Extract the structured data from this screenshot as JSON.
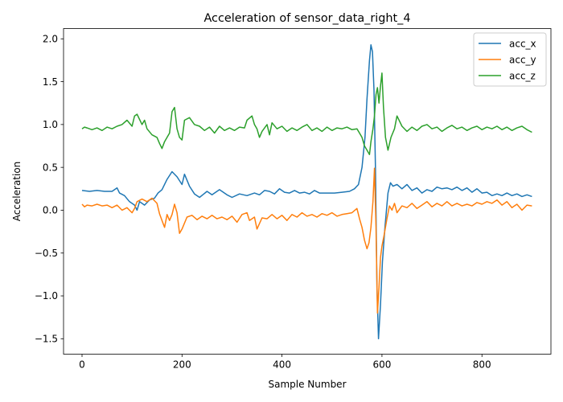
{
  "chart_data": {
    "type": "line",
    "title": "Acceleration of sensor_data_right_4",
    "xlabel": "Sample Number",
    "ylabel": "Acceleration",
    "xlim": [
      -37,
      938
    ],
    "ylim": [
      -1.68,
      2.12
    ],
    "xticks": [
      0,
      200,
      400,
      600,
      800
    ],
    "yticks": [
      -1.5,
      -1.0,
      -0.5,
      0.0,
      0.5,
      1.0,
      1.5,
      2.0
    ],
    "ytick_labels": [
      "−1.5",
      "−1.0",
      "−0.5",
      "0.0",
      "0.5",
      "1.0",
      "1.5",
      "2.0"
    ],
    "legend": "upper right",
    "grid": false,
    "series": [
      {
        "name": "acc_x",
        "color": "#1f77b4",
        "points": [
          [
            0,
            0.23
          ],
          [
            15,
            0.22
          ],
          [
            30,
            0.23
          ],
          [
            45,
            0.22
          ],
          [
            60,
            0.22
          ],
          [
            70,
            0.26
          ],
          [
            75,
            0.2
          ],
          [
            85,
            0.17
          ],
          [
            95,
            0.1
          ],
          [
            105,
            0.06
          ],
          [
            110,
            0.0
          ],
          [
            115,
            0.1
          ],
          [
            125,
            0.06
          ],
          [
            135,
            0.12
          ],
          [
            145,
            0.14
          ],
          [
            152,
            0.2
          ],
          [
            160,
            0.24
          ],
          [
            170,
            0.36
          ],
          [
            180,
            0.45
          ],
          [
            190,
            0.39
          ],
          [
            200,
            0.3
          ],
          [
            205,
            0.42
          ],
          [
            215,
            0.28
          ],
          [
            225,
            0.19
          ],
          [
            235,
            0.15
          ],
          [
            250,
            0.22
          ],
          [
            260,
            0.18
          ],
          [
            275,
            0.24
          ],
          [
            290,
            0.18
          ],
          [
            300,
            0.15
          ],
          [
            315,
            0.19
          ],
          [
            330,
            0.17
          ],
          [
            345,
            0.2
          ],
          [
            355,
            0.18
          ],
          [
            365,
            0.23
          ],
          [
            375,
            0.22
          ],
          [
            385,
            0.19
          ],
          [
            395,
            0.25
          ],
          [
            405,
            0.21
          ],
          [
            415,
            0.2
          ],
          [
            425,
            0.23
          ],
          [
            435,
            0.2
          ],
          [
            445,
            0.21
          ],
          [
            455,
            0.19
          ],
          [
            465,
            0.23
          ],
          [
            475,
            0.2
          ],
          [
            490,
            0.2
          ],
          [
            505,
            0.2
          ],
          [
            520,
            0.21
          ],
          [
            535,
            0.22
          ],
          [
            545,
            0.25
          ],
          [
            553,
            0.3
          ],
          [
            560,
            0.5
          ],
          [
            566,
            0.85
          ],
          [
            570,
            1.3
          ],
          [
            575,
            1.75
          ],
          [
            578,
            1.93
          ],
          [
            581,
            1.85
          ],
          [
            584,
            1.4
          ],
          [
            587,
            0.5
          ],
          [
            590,
            -0.9
          ],
          [
            593,
            -1.5
          ],
          [
            597,
            -1.1
          ],
          [
            601,
            -0.6
          ],
          [
            606,
            -0.2
          ],
          [
            612,
            0.2
          ],
          [
            617,
            0.32
          ],
          [
            622,
            0.28
          ],
          [
            630,
            0.3
          ],
          [
            640,
            0.25
          ],
          [
            650,
            0.3
          ],
          [
            660,
            0.23
          ],
          [
            670,
            0.26
          ],
          [
            680,
            0.2
          ],
          [
            690,
            0.24
          ],
          [
            700,
            0.22
          ],
          [
            710,
            0.27
          ],
          [
            720,
            0.25
          ],
          [
            730,
            0.26
          ],
          [
            740,
            0.24
          ],
          [
            750,
            0.27
          ],
          [
            760,
            0.23
          ],
          [
            770,
            0.26
          ],
          [
            780,
            0.21
          ],
          [
            790,
            0.25
          ],
          [
            800,
            0.2
          ],
          [
            810,
            0.21
          ],
          [
            820,
            0.17
          ],
          [
            830,
            0.19
          ],
          [
            840,
            0.17
          ],
          [
            850,
            0.2
          ],
          [
            860,
            0.17
          ],
          [
            870,
            0.19
          ],
          [
            880,
            0.16
          ],
          [
            890,
            0.18
          ],
          [
            900,
            0.16
          ]
        ]
      },
      {
        "name": "acc_y",
        "color": "#ff7f0e",
        "points": [
          [
            0,
            0.07
          ],
          [
            5,
            0.04
          ],
          [
            10,
            0.06
          ],
          [
            20,
            0.05
          ],
          [
            30,
            0.07
          ],
          [
            40,
            0.05
          ],
          [
            50,
            0.06
          ],
          [
            60,
            0.03
          ],
          [
            70,
            0.06
          ],
          [
            80,
            0.0
          ],
          [
            90,
            0.03
          ],
          [
            100,
            -0.03
          ],
          [
            105,
            0.02
          ],
          [
            110,
            0.1
          ],
          [
            120,
            0.13
          ],
          [
            130,
            0.1
          ],
          [
            140,
            0.14
          ],
          [
            150,
            0.08
          ],
          [
            155,
            -0.04
          ],
          [
            160,
            -0.12
          ],
          [
            165,
            -0.2
          ],
          [
            170,
            -0.05
          ],
          [
            175,
            -0.12
          ],
          [
            180,
            -0.05
          ],
          [
            185,
            0.07
          ],
          [
            190,
            -0.03
          ],
          [
            195,
            -0.27
          ],
          [
            200,
            -0.22
          ],
          [
            210,
            -0.08
          ],
          [
            220,
            -0.06
          ],
          [
            230,
            -0.11
          ],
          [
            240,
            -0.07
          ],
          [
            250,
            -0.1
          ],
          [
            260,
            -0.06
          ],
          [
            270,
            -0.1
          ],
          [
            280,
            -0.08
          ],
          [
            290,
            -0.11
          ],
          [
            300,
            -0.07
          ],
          [
            310,
            -0.14
          ],
          [
            320,
            -0.05
          ],
          [
            330,
            -0.03
          ],
          [
            335,
            -0.12
          ],
          [
            345,
            -0.08
          ],
          [
            350,
            -0.22
          ],
          [
            360,
            -0.09
          ],
          [
            370,
            -0.1
          ],
          [
            380,
            -0.05
          ],
          [
            390,
            -0.1
          ],
          [
            400,
            -0.06
          ],
          [
            410,
            -0.12
          ],
          [
            420,
            -0.05
          ],
          [
            430,
            -0.08
          ],
          [
            440,
            -0.03
          ],
          [
            450,
            -0.07
          ],
          [
            460,
            -0.05
          ],
          [
            470,
            -0.08
          ],
          [
            480,
            -0.04
          ],
          [
            490,
            -0.06
          ],
          [
            500,
            -0.03
          ],
          [
            510,
            -0.07
          ],
          [
            520,
            -0.05
          ],
          [
            530,
            -0.04
          ],
          [
            540,
            -0.03
          ],
          [
            550,
            0.02
          ],
          [
            555,
            -0.1
          ],
          [
            560,
            -0.2
          ],
          [
            565,
            -0.35
          ],
          [
            570,
            -0.45
          ],
          [
            574,
            -0.38
          ],
          [
            578,
            -0.2
          ],
          [
            582,
            0.1
          ],
          [
            585,
            0.49
          ],
          [
            588,
            -0.2
          ],
          [
            591,
            -1.2
          ],
          [
            594,
            -0.9
          ],
          [
            597,
            -0.55
          ],
          [
            600,
            -0.42
          ],
          [
            604,
            -0.3
          ],
          [
            610,
            -0.1
          ],
          [
            615,
            0.05
          ],
          [
            620,
            0.0
          ],
          [
            625,
            0.08
          ],
          [
            630,
            -0.03
          ],
          [
            640,
            0.05
          ],
          [
            650,
            0.03
          ],
          [
            660,
            0.08
          ],
          [
            670,
            0.02
          ],
          [
            680,
            0.06
          ],
          [
            690,
            0.1
          ],
          [
            700,
            0.04
          ],
          [
            710,
            0.08
          ],
          [
            720,
            0.05
          ],
          [
            730,
            0.1
          ],
          [
            740,
            0.05
          ],
          [
            750,
            0.08
          ],
          [
            760,
            0.05
          ],
          [
            770,
            0.07
          ],
          [
            780,
            0.05
          ],
          [
            790,
            0.09
          ],
          [
            800,
            0.07
          ],
          [
            810,
            0.1
          ],
          [
            820,
            0.08
          ],
          [
            830,
            0.12
          ],
          [
            840,
            0.06
          ],
          [
            850,
            0.1
          ],
          [
            860,
            0.03
          ],
          [
            870,
            0.07
          ],
          [
            880,
            0.0
          ],
          [
            890,
            0.06
          ],
          [
            900,
            0.05
          ]
        ]
      },
      {
        "name": "acc_z",
        "color": "#2ca02c",
        "points": [
          [
            0,
            0.95
          ],
          [
            5,
            0.97
          ],
          [
            10,
            0.96
          ],
          [
            20,
            0.94
          ],
          [
            30,
            0.96
          ],
          [
            40,
            0.93
          ],
          [
            50,
            0.97
          ],
          [
            60,
            0.95
          ],
          [
            70,
            0.98
          ],
          [
            80,
            1.0
          ],
          [
            90,
            1.05
          ],
          [
            100,
            0.98
          ],
          [
            105,
            1.1
          ],
          [
            110,
            1.12
          ],
          [
            115,
            1.06
          ],
          [
            120,
            1.0
          ],
          [
            125,
            1.05
          ],
          [
            130,
            0.95
          ],
          [
            140,
            0.88
          ],
          [
            150,
            0.85
          ],
          [
            155,
            0.78
          ],
          [
            160,
            0.72
          ],
          [
            165,
            0.8
          ],
          [
            170,
            0.85
          ],
          [
            175,
            0.9
          ],
          [
            180,
            1.15
          ],
          [
            185,
            1.2
          ],
          [
            190,
            0.95
          ],
          [
            195,
            0.85
          ],
          [
            200,
            0.82
          ],
          [
            205,
            1.05
          ],
          [
            215,
            1.08
          ],
          [
            225,
            1.0
          ],
          [
            235,
            0.98
          ],
          [
            245,
            0.93
          ],
          [
            255,
            0.97
          ],
          [
            265,
            0.9
          ],
          [
            275,
            0.98
          ],
          [
            285,
            0.93
          ],
          [
            295,
            0.96
          ],
          [
            305,
            0.93
          ],
          [
            315,
            0.97
          ],
          [
            325,
            0.96
          ],
          [
            330,
            1.05
          ],
          [
            340,
            1.1
          ],
          [
            345,
            1.0
          ],
          [
            350,
            0.95
          ],
          [
            355,
            0.85
          ],
          [
            360,
            0.92
          ],
          [
            370,
            1.0
          ],
          [
            375,
            0.88
          ],
          [
            380,
            1.02
          ],
          [
            390,
            0.95
          ],
          [
            400,
            0.98
          ],
          [
            410,
            0.92
          ],
          [
            420,
            0.96
          ],
          [
            430,
            0.93
          ],
          [
            440,
            0.97
          ],
          [
            450,
            1.0
          ],
          [
            460,
            0.93
          ],
          [
            470,
            0.96
          ],
          [
            480,
            0.92
          ],
          [
            490,
            0.97
          ],
          [
            500,
            0.93
          ],
          [
            510,
            0.96
          ],
          [
            520,
            0.95
          ],
          [
            530,
            0.97
          ],
          [
            540,
            0.94
          ],
          [
            550,
            0.95
          ],
          [
            555,
            0.9
          ],
          [
            560,
            0.85
          ],
          [
            565,
            0.75
          ],
          [
            570,
            0.7
          ],
          [
            575,
            0.65
          ],
          [
            578,
            0.8
          ],
          [
            582,
            0.95
          ],
          [
            585,
            1.1
          ],
          [
            588,
            1.35
          ],
          [
            591,
            1.43
          ],
          [
            594,
            1.25
          ],
          [
            597,
            1.45
          ],
          [
            600,
            1.6
          ],
          [
            603,
            1.2
          ],
          [
            607,
            0.85
          ],
          [
            612,
            0.7
          ],
          [
            618,
            0.85
          ],
          [
            625,
            0.95
          ],
          [
            630,
            1.1
          ],
          [
            640,
            0.98
          ],
          [
            650,
            0.92
          ],
          [
            660,
            0.97
          ],
          [
            670,
            0.93
          ],
          [
            680,
            0.98
          ],
          [
            690,
            1.0
          ],
          [
            700,
            0.95
          ],
          [
            710,
            0.97
          ],
          [
            720,
            0.92
          ],
          [
            730,
            0.96
          ],
          [
            740,
            0.99
          ],
          [
            750,
            0.95
          ],
          [
            760,
            0.97
          ],
          [
            770,
            0.93
          ],
          [
            780,
            0.96
          ],
          [
            790,
            0.98
          ],
          [
            800,
            0.94
          ],
          [
            810,
            0.97
          ],
          [
            820,
            0.95
          ],
          [
            830,
            0.98
          ],
          [
            840,
            0.94
          ],
          [
            850,
            0.97
          ],
          [
            860,
            0.93
          ],
          [
            870,
            0.96
          ],
          [
            880,
            0.98
          ],
          [
            890,
            0.94
          ],
          [
            900,
            0.91
          ]
        ]
      }
    ]
  }
}
